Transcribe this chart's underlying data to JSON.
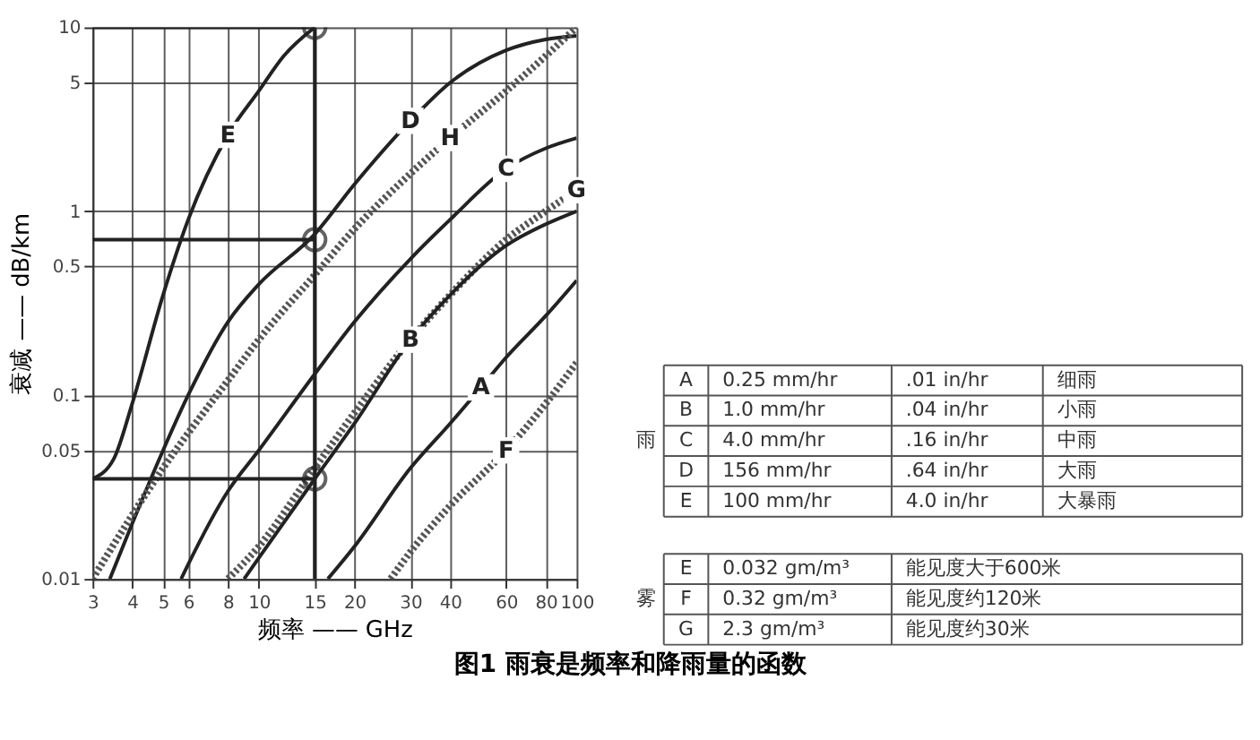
{
  "chart_data": {
    "type": "line",
    "title": "图1 雨衰是频率和降雨量的函数",
    "xlabel": "频率 —— GHz",
    "ylabel": "衰减 —— dB/km",
    "log": "xy",
    "xlim": [
      3,
      100
    ],
    "ylim": [
      0.01,
      10
    ],
    "xticks": [
      3,
      4,
      5,
      6,
      8,
      10,
      15,
      20,
      30,
      40,
      60,
      80,
      100
    ],
    "yticks": [
      0.01,
      0.05,
      0.1,
      0.5,
      1,
      5,
      10
    ],
    "grid": true,
    "series": [
      {
        "name": "E",
        "color": "#222222",
        "line_style": "solid",
        "x": [
          3,
          3.5,
          4,
          5,
          6,
          8,
          10,
          12,
          15
        ],
        "values": [
          0.035,
          0.045,
          0.09,
          0.35,
          0.9,
          2.6,
          4.5,
          7,
          10
        ]
      },
      {
        "name": "D",
        "color": "#222222",
        "line_style": "solid",
        "x": [
          3.4,
          4,
          5,
          6,
          8,
          10,
          15,
          20,
          30,
          40,
          60,
          80,
          100
        ],
        "values": [
          0.01,
          0.02,
          0.05,
          0.1,
          0.25,
          0.4,
          0.75,
          1.4,
          3.1,
          5,
          7.5,
          8.6,
          9
        ]
      },
      {
        "name": "H",
        "color": "#555555",
        "line_style": "dotted",
        "x": [
          3,
          5,
          8,
          10,
          15,
          20,
          30,
          40,
          60,
          80,
          100
        ],
        "values": [
          0.01,
          0.04,
          0.12,
          0.2,
          0.45,
          0.8,
          1.6,
          2.5,
          4.5,
          7,
          10
        ]
      },
      {
        "name": "C",
        "color": "#222222",
        "line_style": "solid",
        "x": [
          5.7,
          6,
          8,
          10,
          15,
          20,
          30,
          40,
          60,
          80,
          100
        ],
        "values": [
          0.01,
          0.012,
          0.03,
          0.05,
          0.13,
          0.25,
          0.55,
          0.9,
          1.7,
          2.2,
          2.5
        ]
      },
      {
        "name": "G",
        "color": "#555555",
        "line_style": "dotted",
        "x": [
          8,
          10,
          15,
          20,
          30,
          40,
          60,
          80,
          100
        ],
        "values": [
          0.01,
          0.015,
          0.04,
          0.08,
          0.2,
          0.35,
          0.7,
          1.0,
          1.3
        ]
      },
      {
        "name": "B",
        "color": "#222222",
        "line_style": "solid",
        "x": [
          9,
          10,
          15,
          20,
          30,
          40,
          60,
          80,
          100
        ],
        "values": [
          0.01,
          0.013,
          0.035,
          0.07,
          0.2,
          0.35,
          0.65,
          0.85,
          1.0
        ]
      },
      {
        "name": "A",
        "color": "#222222",
        "line_style": "solid",
        "x": [
          16.5,
          20,
          30,
          40,
          50,
          60,
          80,
          100
        ],
        "values": [
          0.01,
          0.015,
          0.04,
          0.07,
          0.11,
          0.16,
          0.27,
          0.42
        ]
      },
      {
        "name": "F",
        "color": "#555555",
        "line_style": "dotted",
        "x": [
          26,
          30,
          40,
          60,
          80,
          100
        ],
        "values": [
          0.01,
          0.014,
          0.025,
          0.05,
          0.09,
          0.15
        ]
      },
      {
        "color": "#222222",
        "line_style": "solid",
        "x": [
          3,
          15
        ],
        "values": [
          10,
          10
        ]
      },
      {
        "color": "#222222",
        "line_style": "solid",
        "x": [
          3,
          15
        ],
        "values": [
          0.7,
          0.7
        ]
      },
      {
        "color": "#222222",
        "line_style": "solid",
        "x": [
          3,
          15
        ],
        "values": [
          0.035,
          0.035
        ]
      },
      {
        "color": "#222222",
        "line_style": "solid",
        "x": [
          15,
          15
        ],
        "values": [
          0.01,
          10
        ]
      },
      {
        "type": "scatter",
        "marker": "circle",
        "color": "#222222",
        "x": [
          15,
          15,
          15
        ],
        "values": [
          10,
          0.7,
          0.035
        ]
      }
    ],
    "annotations": [
      "A",
      "0.25 mm/hr",
      ".01 in/hr",
      "细雨",
      "B",
      "1.0 mm/hr",
      ".04 in/hr",
      "小雨",
      "C",
      "4.0 mm/hr",
      ".16 in/hr",
      "中雨",
      "D",
      "156 mm/hr",
      ".64 in/hr",
      "大雨",
      "E",
      "100 mm/hr",
      "4.0 in/hr",
      "大暴雨",
      "E",
      "0.032 gm/m³",
      "能见度大于600米",
      "F",
      "0.32 gm/m³",
      "能见度约120米",
      "G",
      "2.3 gm/m³",
      "能见度约30米",
      "雨",
      "雾"
    ]
  }
}
